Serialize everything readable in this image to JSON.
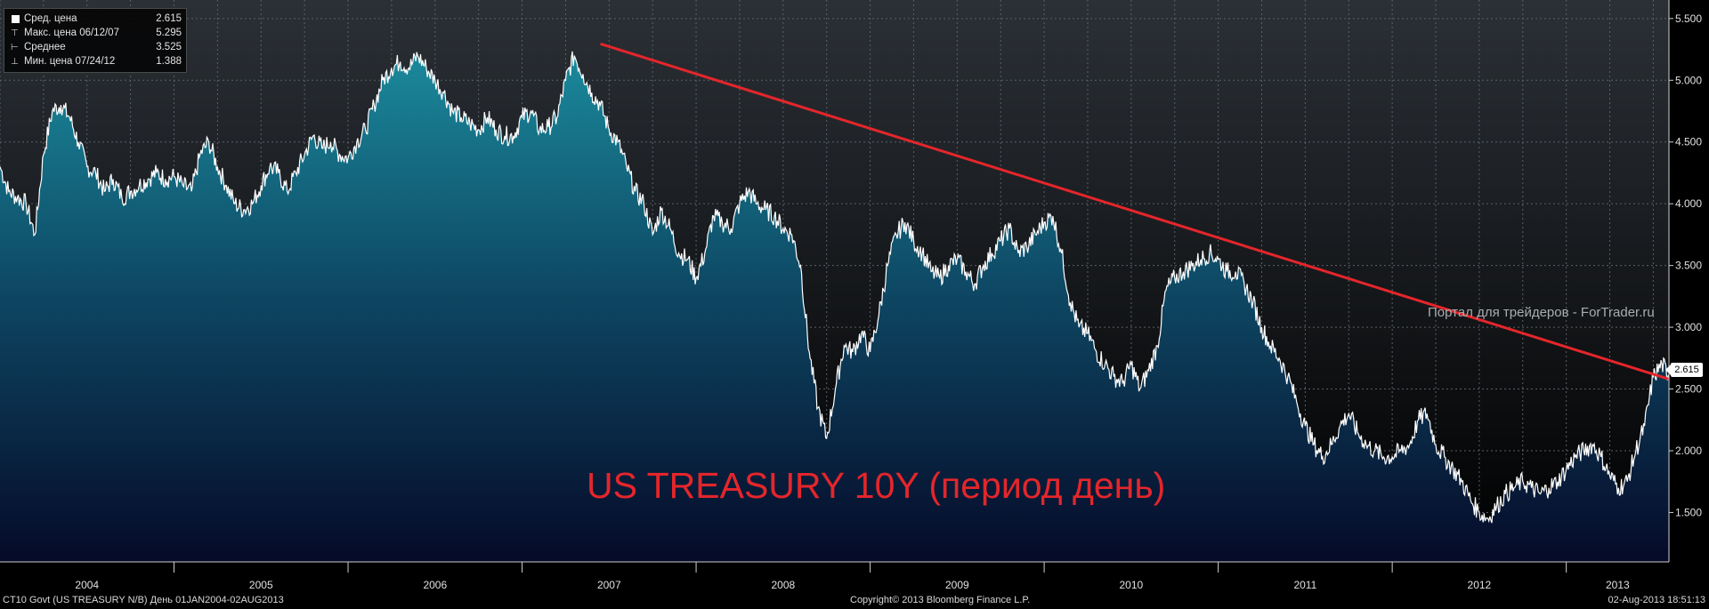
{
  "legend": {
    "items": [
      {
        "label": "Сред. цена",
        "value": "2.615",
        "marker": "square"
      },
      {
        "label": "Макс. цена 06/12/07",
        "value": "5.295",
        "marker": "max"
      },
      {
        "label": "Среднее",
        "value": "3.525",
        "marker": "avg"
      },
      {
        "label": "Мин. цена 07/24/12",
        "value": "1.388",
        "marker": "min"
      }
    ]
  },
  "title": "US TREASURY 10Y (период день)",
  "watermark": "Портал для трейдеров - ForTrader.ru",
  "last_value_label": "2.615",
  "footer": {
    "left": "CT10 Govt (US TREASURY N/B)  День 01JAN2004-02AUG2013",
    "center": "Copyright© 2013 Bloomberg Finance L.P.",
    "right": "02-Aug-2013 18:51:13"
  },
  "colors": {
    "background": "#000000",
    "area_top": "#1b8a9c",
    "area_bottom": "#050a28",
    "line": "#ffffff",
    "trendline": "#e4262b",
    "grid": "#4a4f55"
  },
  "chart_data": {
    "type": "area",
    "x_unit": "year (decimal)",
    "xlim": [
      2004.0,
      2013.59
    ],
    "ylim": [
      1.1,
      5.65
    ],
    "y_ticks": [
      "1.500",
      "2.000",
      "2.500",
      "3.000",
      "3.500",
      "4.000",
      "4.500",
      "5.000",
      "5.500"
    ],
    "x_tick_labels": [
      "2004",
      "2005",
      "2006",
      "2007",
      "2008",
      "2009",
      "2010",
      "2011",
      "2012",
      "2013"
    ],
    "grid": true,
    "legend_position": "top-left",
    "series": [
      {
        "x": [
          2004.0,
          2004.05,
          2004.1,
          2004.15,
          2004.2,
          2004.25,
          2004.3,
          2004.35,
          2004.4,
          2004.45,
          2004.5,
          2004.55,
          2004.6,
          2004.65,
          2004.7,
          2004.75,
          2004.8,
          2004.85,
          2004.9,
          2004.95,
          2005.0,
          2005.05,
          2005.1,
          2005.15,
          2005.2,
          2005.25,
          2005.3,
          2005.35,
          2005.4,
          2005.45,
          2005.5,
          2005.55,
          2005.6,
          2005.65,
          2005.7,
          2005.75,
          2005.8,
          2005.85,
          2005.9,
          2005.95,
          2006.0,
          2006.05,
          2006.1,
          2006.15,
          2006.2,
          2006.25,
          2006.3,
          2006.35,
          2006.4,
          2006.45,
          2006.5,
          2006.55,
          2006.6,
          2006.65,
          2006.7,
          2006.75,
          2006.8,
          2006.85,
          2006.9,
          2006.95,
          2007.0,
          2007.05,
          2007.1,
          2007.15,
          2007.2,
          2007.25,
          2007.3,
          2007.35,
          2007.4,
          2007.45,
          2007.5,
          2007.55,
          2007.6,
          2007.65,
          2007.7,
          2007.75,
          2007.8,
          2007.85,
          2007.9,
          2007.95,
          2008.0,
          2008.05,
          2008.1,
          2008.15,
          2008.2,
          2008.25,
          2008.3,
          2008.35,
          2008.4,
          2008.45,
          2008.5,
          2008.55,
          2008.6,
          2008.65,
          2008.7,
          2008.75,
          2008.8,
          2008.85,
          2008.9,
          2008.95,
          2009.0,
          2009.05,
          2009.1,
          2009.15,
          2009.2,
          2009.25,
          2009.3,
          2009.35,
          2009.4,
          2009.45,
          2009.5,
          2009.55,
          2009.6,
          2009.65,
          2009.7,
          2009.75,
          2009.8,
          2009.85,
          2009.9,
          2009.95,
          2010.0,
          2010.05,
          2010.1,
          2010.15,
          2010.2,
          2010.25,
          2010.3,
          2010.35,
          2010.4,
          2010.45,
          2010.5,
          2010.55,
          2010.6,
          2010.65,
          2010.7,
          2010.75,
          2010.8,
          2010.85,
          2010.9,
          2010.95,
          2011.0,
          2011.05,
          2011.1,
          2011.15,
          2011.2,
          2011.25,
          2011.3,
          2011.35,
          2011.4,
          2011.45,
          2011.5,
          2011.55,
          2011.6,
          2011.65,
          2011.7,
          2011.75,
          2011.8,
          2011.85,
          2011.9,
          2011.95,
          2012.0,
          2012.05,
          2012.1,
          2012.15,
          2012.2,
          2012.25,
          2012.3,
          2012.35,
          2012.4,
          2012.45,
          2012.5,
          2012.55,
          2012.6,
          2012.65,
          2012.7,
          2012.75,
          2012.8,
          2012.85,
          2012.9,
          2012.95,
          2013.0,
          2013.05,
          2013.1,
          2013.15,
          2013.2,
          2013.25,
          2013.3,
          2013.35,
          2013.4,
          2013.45,
          2013.5,
          2013.55,
          2013.59
        ],
        "y": [
          4.3,
          4.1,
          4.05,
          4.0,
          3.75,
          4.4,
          4.75,
          4.8,
          4.7,
          4.5,
          4.3,
          4.25,
          4.1,
          4.2,
          4.05,
          4.1,
          4.15,
          4.2,
          4.25,
          4.2,
          4.22,
          4.15,
          4.1,
          4.4,
          4.5,
          4.3,
          4.15,
          4.0,
          3.95,
          4.0,
          4.15,
          4.3,
          4.25,
          4.1,
          4.25,
          4.4,
          4.55,
          4.45,
          4.5,
          4.4,
          4.37,
          4.5,
          4.6,
          4.8,
          5.0,
          5.1,
          5.15,
          5.1,
          5.2,
          5.1,
          5.0,
          4.9,
          4.75,
          4.7,
          4.65,
          4.6,
          4.7,
          4.6,
          4.55,
          4.55,
          4.7,
          4.75,
          4.6,
          4.62,
          4.7,
          5.0,
          5.2,
          5.05,
          4.9,
          4.8,
          4.6,
          4.5,
          4.3,
          4.1,
          4.0,
          3.75,
          3.95,
          3.8,
          3.6,
          3.55,
          3.4,
          3.6,
          3.9,
          3.85,
          3.8,
          4.0,
          4.1,
          4.0,
          3.95,
          3.9,
          3.8,
          3.75,
          3.5,
          2.8,
          2.35,
          2.1,
          2.5,
          2.85,
          2.8,
          2.95,
          2.8,
          3.1,
          3.5,
          3.75,
          3.85,
          3.7,
          3.6,
          3.45,
          3.4,
          3.5,
          3.55,
          3.45,
          3.35,
          3.5,
          3.6,
          3.7,
          3.8,
          3.6,
          3.65,
          3.75,
          3.85,
          3.9,
          3.6,
          3.2,
          3.0,
          2.95,
          2.8,
          2.7,
          2.6,
          2.55,
          2.7,
          2.5,
          2.65,
          2.85,
          3.3,
          3.4,
          3.45,
          3.5,
          3.55,
          3.6,
          3.55,
          3.45,
          3.45,
          3.35,
          3.2,
          3.0,
          2.85,
          2.75,
          2.6,
          2.4,
          2.2,
          2.05,
          1.95,
          2.05,
          2.2,
          2.3,
          2.15,
          2.05,
          2.0,
          1.95,
          1.95,
          2.0,
          2.05,
          2.25,
          2.3,
          2.05,
          1.95,
          1.85,
          1.75,
          1.6,
          1.5,
          1.45,
          1.55,
          1.65,
          1.7,
          1.75,
          1.7,
          1.65,
          1.7,
          1.75,
          1.85,
          1.95,
          2.0,
          2.05,
          1.95,
          1.8,
          1.7,
          1.75,
          2.0,
          2.2,
          2.6,
          2.7,
          2.615
        ]
      }
    ],
    "trendline": {
      "from": [
        2007.45,
        5.295
      ],
      "to": [
        2013.59,
        2.58
      ]
    }
  }
}
